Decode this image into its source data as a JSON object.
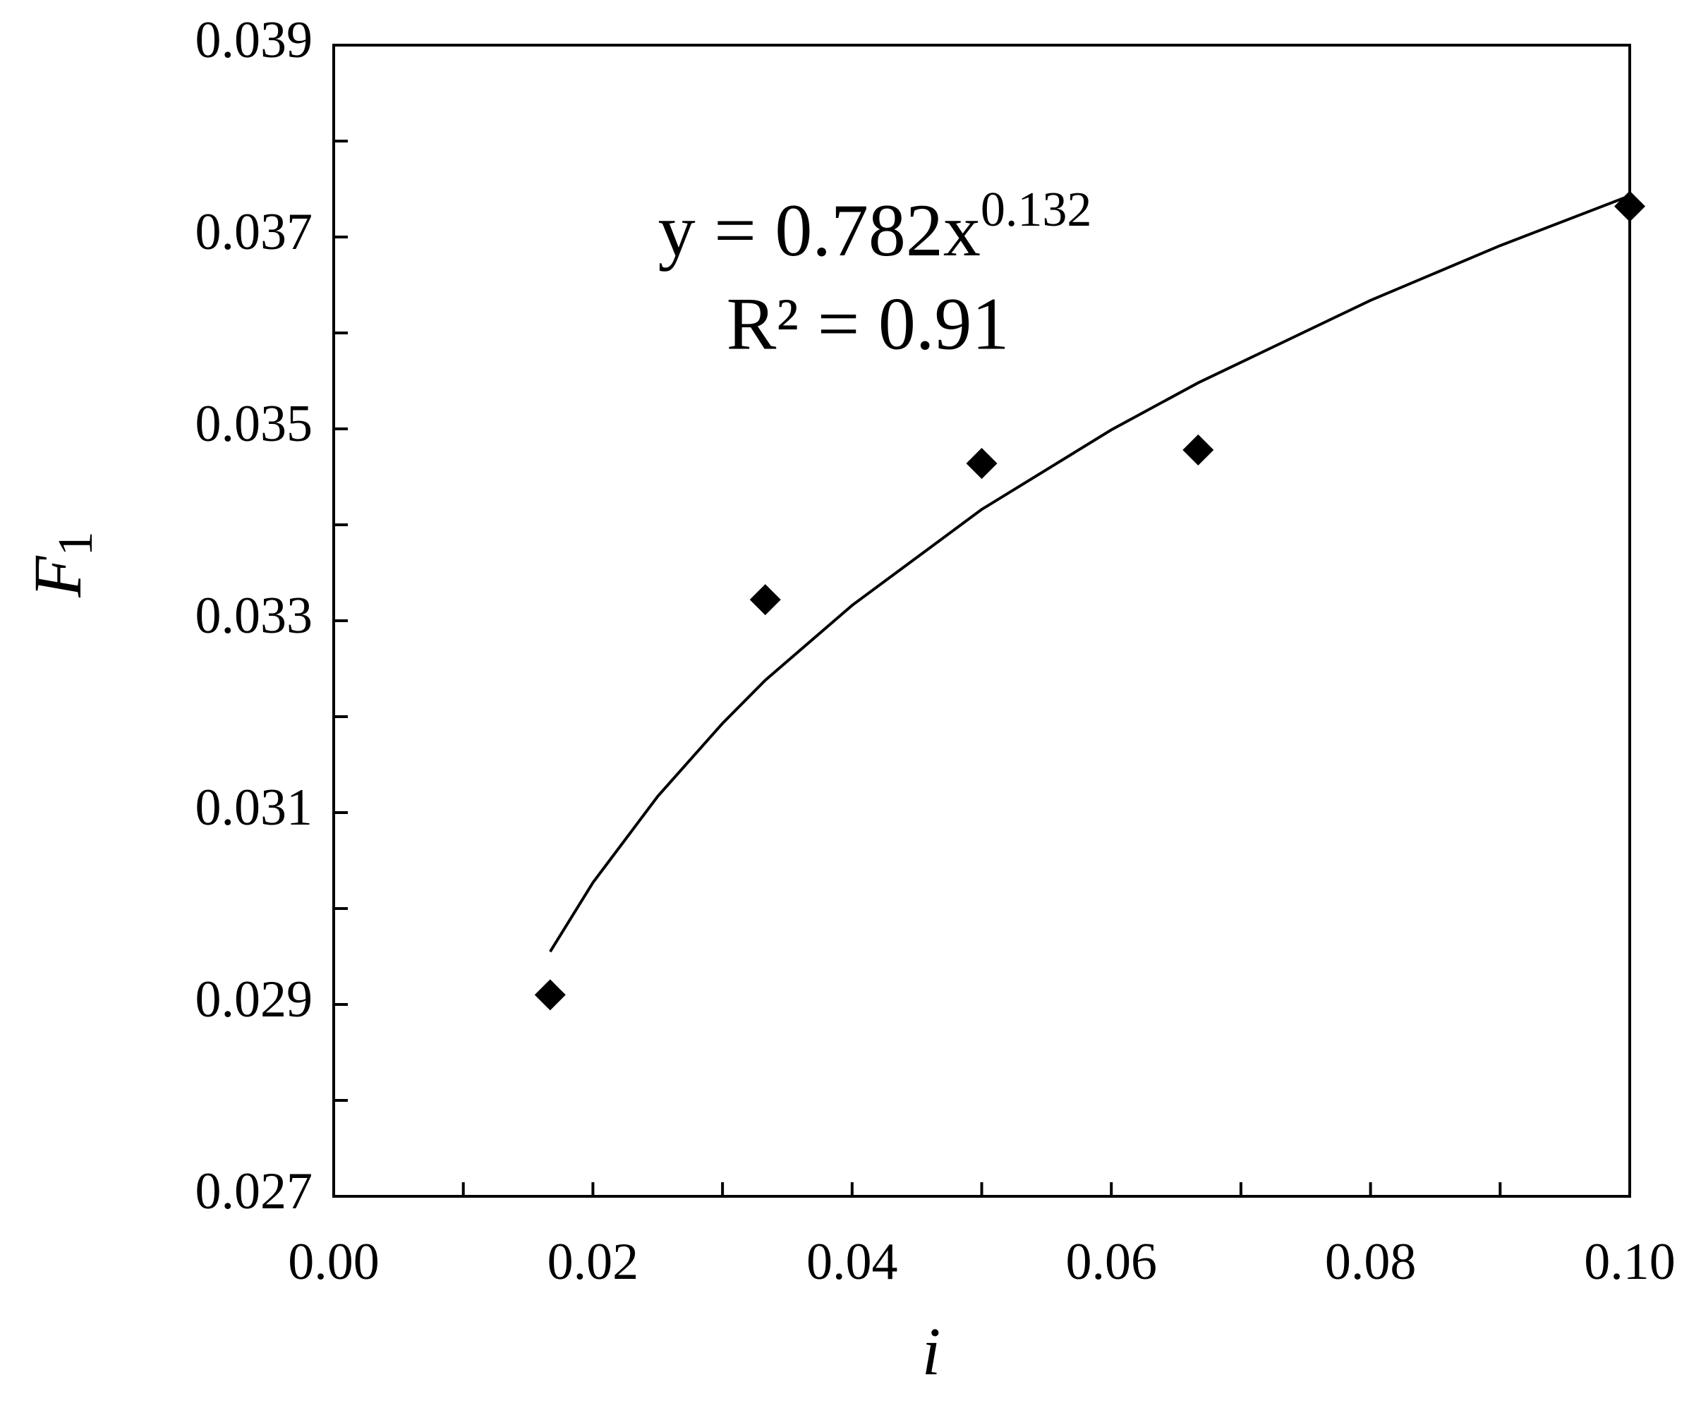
{
  "chart_data": {
    "type": "scatter",
    "xlabel": "i",
    "ylabel": "F",
    "ylabel_subscript": "1",
    "annotation": {
      "equation": "y = 0.782x",
      "exponent": "0.132",
      "r2": "R² = 0.91"
    },
    "xlim": [
      0,
      0.1
    ],
    "ylim": [
      0.027,
      0.039
    ],
    "xticks": [
      {
        "value": 0,
        "label": "0.00"
      },
      0.02,
      0.04,
      0.06,
      0.08,
      {
        "value": 0.1,
        "label": "0.10"
      }
    ],
    "xminorticks": [
      0.01,
      0.03,
      0.05,
      0.07,
      0.09
    ],
    "yticks": [
      0.027,
      0.029,
      0.031,
      0.033,
      0.035,
      0.037,
      0.039
    ],
    "yminorticks": [
      0.028,
      0.03,
      0.032,
      0.034,
      0.036,
      0.038
    ],
    "points": {
      "color": "#000000",
      "x": [
        0.0167,
        0.0333,
        0.05,
        0.0667,
        0.1
      ],
      "y": [
        0.0291,
        0.03322,
        0.03464,
        0.03478,
        0.03732
      ]
    },
    "fit": {
      "color": "#000000",
      "x": [
        0.0167,
        0.02,
        0.025,
        0.03,
        0.0333,
        0.04,
        0.05,
        0.06,
        0.0667,
        0.08,
        0.09,
        0.1
      ],
      "y": [
        0.02955,
        0.03027,
        0.03117,
        0.03193,
        0.03238,
        0.03316,
        0.03416,
        0.03499,
        0.03548,
        0.03634,
        0.03691,
        0.03743
      ]
    }
  }
}
